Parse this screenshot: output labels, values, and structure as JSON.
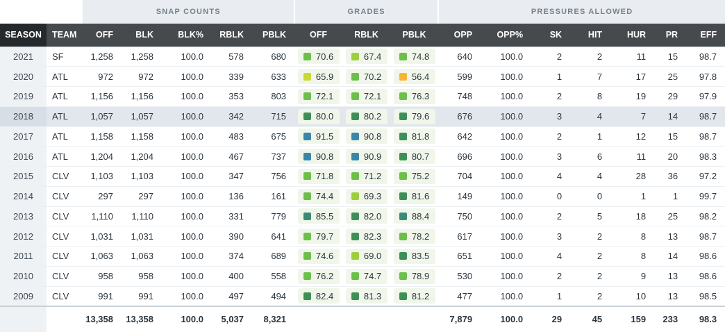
{
  "groups": {
    "snap_counts": "SNAP COUNTS",
    "grades": "GRADES",
    "pressures_allowed": "PRESSURES ALLOWED"
  },
  "columns": {
    "season": "SEASON",
    "team": "TEAM",
    "off": "OFF",
    "blk": "BLK",
    "blk_pct": "BLK%",
    "rblk": "RBLK",
    "pblk": "PBLK",
    "g_off": "OFF",
    "g_rblk": "RBLK",
    "g_pblk": "PBLK",
    "opp": "OPP",
    "opp_pct": "OPP%",
    "sk": "SK",
    "hit": "HIT",
    "hur": "HUR",
    "pr": "PR",
    "eff": "EFF"
  },
  "grade_colors": {
    "blue": "#3a86a8",
    "teal": "#3a8a78",
    "dark_green": "#3d8f58",
    "green": "#6cbf4a",
    "light_green": "#9dce3c",
    "yellow_green": "#c8d936",
    "orange": "#f5b731"
  },
  "highlight_row_index": 3,
  "rows": [
    {
      "season": "2021",
      "team": "SF",
      "off": "1,258",
      "blk": "1,258",
      "blk_pct": "100.0",
      "rblk": "578",
      "pblk": "680",
      "g_off": "70.6",
      "g_off_c": "green",
      "g_rblk": "67.4",
      "g_rblk_c": "light_green",
      "g_pblk": "74.8",
      "g_pblk_c": "green",
      "opp": "640",
      "opp_pct": "100.0",
      "sk": "2",
      "hit": "2",
      "hur": "11",
      "pr": "15",
      "eff": "98.7"
    },
    {
      "season": "2020",
      "team": "ATL",
      "off": "972",
      "blk": "972",
      "blk_pct": "100.0",
      "rblk": "339",
      "pblk": "633",
      "g_off": "65.9",
      "g_off_c": "yellow_green",
      "g_rblk": "70.2",
      "g_rblk_c": "green",
      "g_pblk": "56.4",
      "g_pblk_c": "orange",
      "opp": "599",
      "opp_pct": "100.0",
      "sk": "1",
      "hit": "7",
      "hur": "17",
      "pr": "25",
      "eff": "97.8"
    },
    {
      "season": "2019",
      "team": "ATL",
      "off": "1,156",
      "blk": "1,156",
      "blk_pct": "100.0",
      "rblk": "353",
      "pblk": "803",
      "g_off": "72.1",
      "g_off_c": "green",
      "g_rblk": "72.1",
      "g_rblk_c": "green",
      "g_pblk": "76.3",
      "g_pblk_c": "green",
      "opp": "748",
      "opp_pct": "100.0",
      "sk": "2",
      "hit": "8",
      "hur": "19",
      "pr": "29",
      "eff": "97.9"
    },
    {
      "season": "2018",
      "team": "ATL",
      "off": "1,057",
      "blk": "1,057",
      "blk_pct": "100.0",
      "rblk": "342",
      "pblk": "715",
      "g_off": "80.0",
      "g_off_c": "dark_green",
      "g_rblk": "80.2",
      "g_rblk_c": "dark_green",
      "g_pblk": "79.6",
      "g_pblk_c": "dark_green",
      "opp": "676",
      "opp_pct": "100.0",
      "sk": "3",
      "hit": "4",
      "hur": "7",
      "pr": "14",
      "eff": "98.7"
    },
    {
      "season": "2017",
      "team": "ATL",
      "off": "1,158",
      "blk": "1,158",
      "blk_pct": "100.0",
      "rblk": "483",
      "pblk": "675",
      "g_off": "91.5",
      "g_off_c": "blue",
      "g_rblk": "90.8",
      "g_rblk_c": "blue",
      "g_pblk": "81.8",
      "g_pblk_c": "dark_green",
      "opp": "642",
      "opp_pct": "100.0",
      "sk": "2",
      "hit": "1",
      "hur": "12",
      "pr": "15",
      "eff": "98.7"
    },
    {
      "season": "2016",
      "team": "ATL",
      "off": "1,204",
      "blk": "1,204",
      "blk_pct": "100.0",
      "rblk": "467",
      "pblk": "737",
      "g_off": "90.8",
      "g_off_c": "blue",
      "g_rblk": "90.9",
      "g_rblk_c": "blue",
      "g_pblk": "80.7",
      "g_pblk_c": "dark_green",
      "opp": "696",
      "opp_pct": "100.0",
      "sk": "3",
      "hit": "6",
      "hur": "11",
      "pr": "20",
      "eff": "98.3"
    },
    {
      "season": "2015",
      "team": "CLV",
      "off": "1,103",
      "blk": "1,103",
      "blk_pct": "100.0",
      "rblk": "347",
      "pblk": "756",
      "g_off": "71.8",
      "g_off_c": "green",
      "g_rblk": "71.2",
      "g_rblk_c": "green",
      "g_pblk": "75.2",
      "g_pblk_c": "green",
      "opp": "704",
      "opp_pct": "100.0",
      "sk": "4",
      "hit": "4",
      "hur": "28",
      "pr": "36",
      "eff": "97.2"
    },
    {
      "season": "2014",
      "team": "CLV",
      "off": "297",
      "blk": "297",
      "blk_pct": "100.0",
      "rblk": "136",
      "pblk": "161",
      "g_off": "74.4",
      "g_off_c": "green",
      "g_rblk": "69.3",
      "g_rblk_c": "light_green",
      "g_pblk": "81.6",
      "g_pblk_c": "dark_green",
      "opp": "149",
      "opp_pct": "100.0",
      "sk": "0",
      "hit": "0",
      "hur": "1",
      "pr": "1",
      "eff": "99.7"
    },
    {
      "season": "2013",
      "team": "CLV",
      "off": "1,110",
      "blk": "1,110",
      "blk_pct": "100.0",
      "rblk": "331",
      "pblk": "779",
      "g_off": "85.5",
      "g_off_c": "teal",
      "g_rblk": "82.0",
      "g_rblk_c": "dark_green",
      "g_pblk": "88.4",
      "g_pblk_c": "teal",
      "opp": "750",
      "opp_pct": "100.0",
      "sk": "2",
      "hit": "5",
      "hur": "18",
      "pr": "25",
      "eff": "98.2"
    },
    {
      "season": "2012",
      "team": "CLV",
      "off": "1,031",
      "blk": "1,031",
      "blk_pct": "100.0",
      "rblk": "390",
      "pblk": "641",
      "g_off": "79.7",
      "g_off_c": "green",
      "g_rblk": "82.3",
      "g_rblk_c": "dark_green",
      "g_pblk": "78.2",
      "g_pblk_c": "green",
      "opp": "617",
      "opp_pct": "100.0",
      "sk": "3",
      "hit": "2",
      "hur": "8",
      "pr": "13",
      "eff": "98.7"
    },
    {
      "season": "2011",
      "team": "CLV",
      "off": "1,063",
      "blk": "1,063",
      "blk_pct": "100.0",
      "rblk": "374",
      "pblk": "689",
      "g_off": "74.6",
      "g_off_c": "green",
      "g_rblk": "69.0",
      "g_rblk_c": "light_green",
      "g_pblk": "83.5",
      "g_pblk_c": "dark_green",
      "opp": "651",
      "opp_pct": "100.0",
      "sk": "4",
      "hit": "2",
      "hur": "8",
      "pr": "14",
      "eff": "98.6"
    },
    {
      "season": "2010",
      "team": "CLV",
      "off": "958",
      "blk": "958",
      "blk_pct": "100.0",
      "rblk": "400",
      "pblk": "558",
      "g_off": "76.2",
      "g_off_c": "green",
      "g_rblk": "74.7",
      "g_rblk_c": "green",
      "g_pblk": "78.9",
      "g_pblk_c": "green",
      "opp": "530",
      "opp_pct": "100.0",
      "sk": "2",
      "hit": "2",
      "hur": "9",
      "pr": "13",
      "eff": "98.6"
    },
    {
      "season": "2009",
      "team": "CLV",
      "off": "991",
      "blk": "991",
      "blk_pct": "100.0",
      "rblk": "497",
      "pblk": "494",
      "g_off": "82.4",
      "g_off_c": "dark_green",
      "g_rblk": "81.3",
      "g_rblk_c": "dark_green",
      "g_pblk": "81.2",
      "g_pblk_c": "dark_green",
      "opp": "477",
      "opp_pct": "100.0",
      "sk": "1",
      "hit": "2",
      "hur": "10",
      "pr": "13",
      "eff": "98.5"
    }
  ],
  "totals": {
    "off": "13,358",
    "blk": "13,358",
    "blk_pct": "100.0",
    "rblk": "5,037",
    "pblk": "8,321",
    "opp": "7,879",
    "opp_pct": "100.0",
    "sk": "29",
    "hit": "45",
    "hur": "159",
    "pr": "233",
    "eff": "98.3"
  }
}
